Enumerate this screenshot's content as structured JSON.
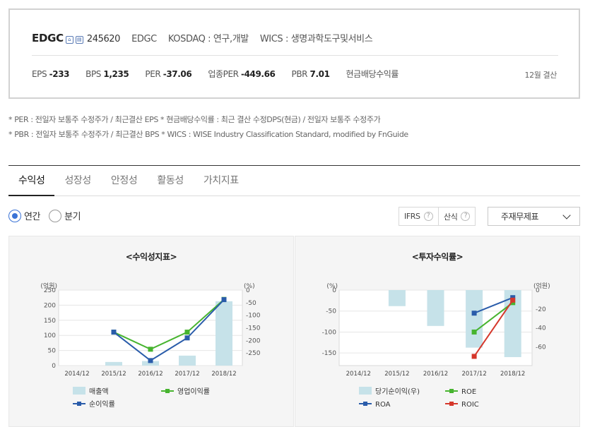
{
  "summary": {
    "ticker": "EDGC",
    "icon1": "home-icon",
    "icon2": "document-icon",
    "code": "245620",
    "short_name": "EDGC",
    "market": "KOSDAQ : 연구,개발",
    "wics": "WICS : 생명과학도구및서비스",
    "metrics": [
      {
        "label": "EPS",
        "value": "-233"
      },
      {
        "label": "BPS",
        "value": "1,235"
      },
      {
        "label": "PER",
        "value": "-37.06"
      },
      {
        "label": "업종PER",
        "value": "-449.66"
      },
      {
        "label": "PBR",
        "value": "7.01"
      },
      {
        "label": "현금배당수익률",
        "value": ""
      }
    ],
    "fiscal": "12월 결산"
  },
  "notes": [
    "* PER : 전일자 보통주 수정주가 / 최근결산 EPS * 현금배당수익률 : 최근 결산 수정DPS(현금) / 전일자 보통주 수정주가",
    "* PBR : 전일자 보통주 수정주가 / 최근결산 BPS * WICS : WISE Industry Classification Standard, modified by FnGuide"
  ],
  "tabs": [
    "수익성",
    "성장성",
    "안정성",
    "활동성",
    "가치지표"
  ],
  "radios": {
    "annual": "연간",
    "quarterly": "분기"
  },
  "options": {
    "ifrs": "IFRS",
    "calc": "산식",
    "help": "?"
  },
  "select": {
    "value": "주재무제표"
  },
  "chart_data": [
    {
      "type": "bar",
      "title": "<수익성지표>",
      "categories": [
        "2014/12",
        "2015/12",
        "2016/12",
        "2017/12",
        "2018/12"
      ],
      "left_axis": {
        "unit": "(억원)",
        "ylim": [
          0,
          250
        ],
        "ticks": [
          0,
          50,
          100,
          150,
          200,
          250
        ]
      },
      "right_axis": {
        "unit": "(%)",
        "ylim": [
          -300,
          0
        ],
        "ticks": [
          0,
          -50,
          -100,
          -150,
          -200,
          -250
        ]
      },
      "series": [
        {
          "name": "매출액",
          "kind": "bar",
          "axis": "left",
          "color": "#c6e2e9",
          "values": [
            null,
            12,
            15,
            33,
            213
          ]
        },
        {
          "name": "영업이익률",
          "kind": "line",
          "axis": "right",
          "color": "#47b42f",
          "values": [
            null,
            -167,
            -235,
            -167,
            -37
          ]
        },
        {
          "name": "순이익률",
          "kind": "line",
          "axis": "right",
          "color": "#2a5caa",
          "values": [
            null,
            -167,
            -280,
            -190,
            -38
          ]
        }
      ],
      "legend": [
        "매출액",
        "영업이익률",
        "순이익률"
      ]
    },
    {
      "type": "bar",
      "title": "<투자수익률>",
      "categories": [
        "2014/12",
        "2015/12",
        "2016/12",
        "2017/12",
        "2018/12"
      ],
      "left_axis": {
        "unit": "(%)",
        "ylim": [
          -180,
          0
        ],
        "ticks": [
          0,
          -50,
          -100,
          -150
        ]
      },
      "right_axis": {
        "unit": "(억원)",
        "ylim": [
          -80,
          0
        ],
        "ticks": [
          0,
          -20,
          -40,
          -60
        ]
      },
      "series": [
        {
          "name": "당기순이익(우)",
          "kind": "bar",
          "axis": "right",
          "color": "#c6e2e9",
          "values": [
            null,
            -17,
            -38,
            -61,
            -71
          ]
        },
        {
          "name": "ROE",
          "kind": "line",
          "axis": "left",
          "color": "#47b42f",
          "values": [
            null,
            null,
            null,
            -100,
            -30
          ]
        },
        {
          "name": "ROA",
          "kind": "line",
          "axis": "left",
          "color": "#2a5caa",
          "values": [
            null,
            null,
            null,
            -55,
            -18
          ]
        },
        {
          "name": "ROIC",
          "kind": "line",
          "axis": "left",
          "color": "#d5372b",
          "values": [
            null,
            null,
            null,
            -158,
            -24
          ]
        }
      ],
      "legend": [
        "당기순이익(우)",
        "ROE",
        "ROA",
        "ROIC"
      ]
    }
  ]
}
